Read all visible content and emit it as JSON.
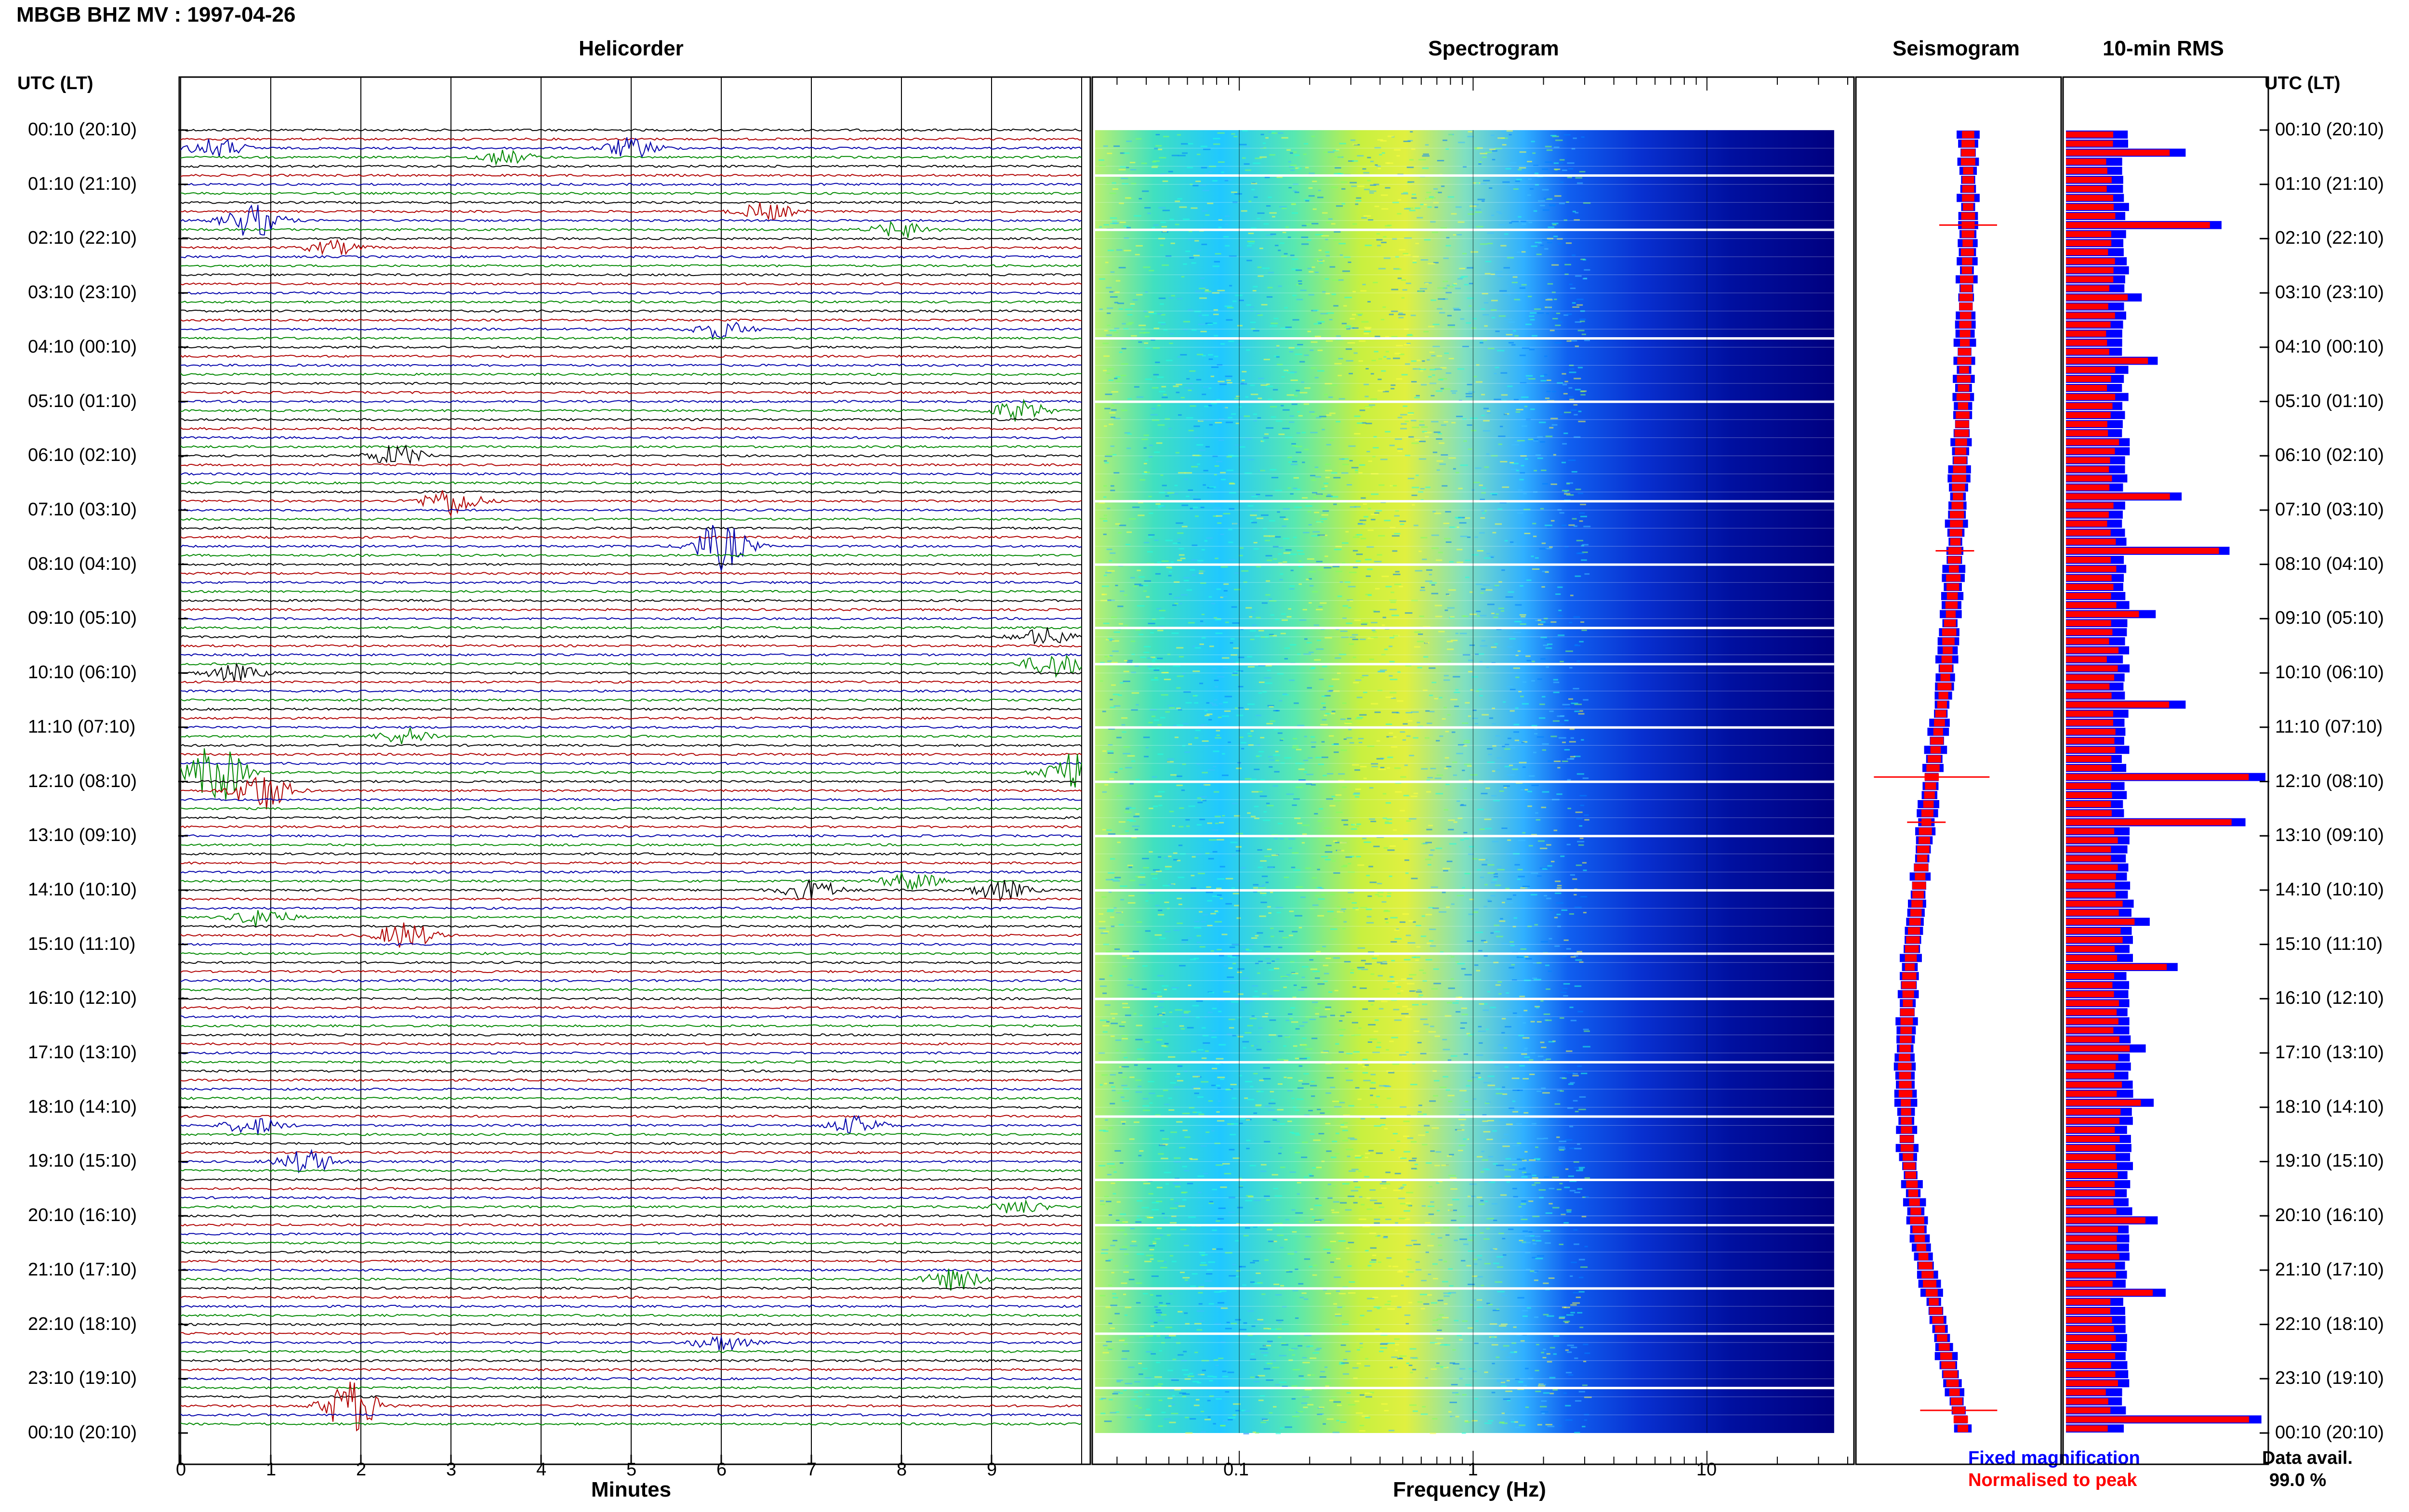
{
  "header": {
    "title": "MBGB BHZ MV : 1997-04-26"
  },
  "panels": {
    "helicorder": "Helicorder",
    "spectrogram": "Spectrogram",
    "seismogram": "Seismogram",
    "rms": "10-min RMS"
  },
  "time_axis": {
    "header": "UTC (LT)",
    "labels": [
      "00:10 (20:10)",
      "01:10 (21:10)",
      "02:10 (22:10)",
      "03:10 (23:10)",
      "04:10 (00:10)",
      "05:10 (01:10)",
      "06:10 (02:10)",
      "07:10 (03:10)",
      "08:10 (04:10)",
      "09:10 (05:10)",
      "10:10 (06:10)",
      "11:10 (07:10)",
      "12:10 (08:10)",
      "13:10 (09:10)",
      "14:10 (10:10)",
      "15:10 (11:10)",
      "16:10 (12:10)",
      "17:10 (13:10)",
      "18:10 (14:10)",
      "19:10 (15:10)",
      "20:10 (16:10)",
      "21:10 (17:10)",
      "22:10 (18:10)",
      "23:10 (19:10)",
      "00:10 (20:10)"
    ]
  },
  "legend": {
    "fixed": "Fixed magnification",
    "normalised": "Normalised to peak",
    "data_avail_label": "Data avail.",
    "data_avail_value": "99.0 %"
  },
  "colors": {
    "trace_cycle": [
      "#000000",
      "#b00000",
      "#0000aa",
      "#008800"
    ],
    "fixed": "#0000ff",
    "normalised": "#ff0000"
  },
  "chart_data": [
    {
      "type": "line",
      "panel": "helicorder",
      "rows": 144,
      "row_duration_min": 10,
      "xlabel": "Minutes",
      "x_ticks": [
        "0",
        "1",
        "2",
        "3",
        "4",
        "5",
        "6",
        "7",
        "8",
        "9"
      ],
      "xlim": [
        0,
        10
      ],
      "events": [
        {
          "row": 2,
          "minute": 0.4,
          "amp": 1.4
        },
        {
          "row": 2,
          "minute": 5.0,
          "amp": 1.5
        },
        {
          "row": 3,
          "minute": 3.6,
          "amp": 1.0
        },
        {
          "row": 10,
          "minute": 0.8,
          "amp": 2.5
        },
        {
          "row": 9,
          "minute": 6.5,
          "amp": 1.3
        },
        {
          "row": 11,
          "minute": 8.0,
          "amp": 1.2
        },
        {
          "row": 13,
          "minute": 1.7,
          "amp": 1.0
        },
        {
          "row": 22,
          "minute": 6.0,
          "amp": 1.3
        },
        {
          "row": 31,
          "minute": 9.3,
          "amp": 1.5
        },
        {
          "row": 36,
          "minute": 2.4,
          "amp": 1.6
        },
        {
          "row": 41,
          "minute": 3.0,
          "amp": 2.2
        },
        {
          "row": 46,
          "minute": 6.0,
          "amp": 3.5
        },
        {
          "row": 56,
          "minute": 9.6,
          "amp": 1.3
        },
        {
          "row": 59,
          "minute": 9.7,
          "amp": 2.0
        },
        {
          "row": 60,
          "minute": 0.6,
          "amp": 1.2
        },
        {
          "row": 67,
          "minute": 2.5,
          "amp": 1.2
        },
        {
          "row": 71,
          "minute": 0.4,
          "amp": 4.5
        },
        {
          "row": 71,
          "minute": 9.9,
          "amp": 3.2
        },
        {
          "row": 73,
          "minute": 0.9,
          "amp": 3.0
        },
        {
          "row": 83,
          "minute": 8.1,
          "amp": 1.4
        },
        {
          "row": 84,
          "minute": 7.0,
          "amp": 1.6
        },
        {
          "row": 84,
          "minute": 9.1,
          "amp": 1.5
        },
        {
          "row": 87,
          "minute": 0.9,
          "amp": 1.4
        },
        {
          "row": 89,
          "minute": 2.5,
          "amp": 2.0
        },
        {
          "row": 110,
          "minute": 0.8,
          "amp": 1.3
        },
        {
          "row": 110,
          "minute": 7.5,
          "amp": 1.3
        },
        {
          "row": 114,
          "minute": 1.4,
          "amp": 1.7
        },
        {
          "row": 119,
          "minute": 9.3,
          "amp": 1.0
        },
        {
          "row": 127,
          "minute": 8.6,
          "amp": 1.6
        },
        {
          "row": 134,
          "minute": 6.0,
          "amp": 1.2
        },
        {
          "row": 141,
          "minute": 1.9,
          "amp": 4.0
        }
      ]
    },
    {
      "type": "heatmap",
      "panel": "spectrogram",
      "xlabel": "Frequency (Hz)",
      "x_scale": "log",
      "xlim": [
        0.025,
        40
      ],
      "x_ticks": [
        "0.1",
        "1",
        "10"
      ],
      "colormap": [
        "#00007f",
        "#0000ff",
        "#0080ff",
        "#00ffff",
        "#80ff80",
        "#ffff00"
      ],
      "gap_rows": [
        5,
        11,
        23,
        30,
        41,
        48,
        55,
        59,
        66,
        72,
        78,
        84,
        91,
        96,
        103,
        109,
        116,
        121,
        128,
        133,
        139
      ]
    },
    {
      "type": "line",
      "panel": "seismogram",
      "description_series": [
        {
          "name": "Fixed magnification",
          "color": "#0000ff"
        },
        {
          "name": "Normalised to peak",
          "color": "#ff0000"
        }
      ],
      "offset_profile": [
        0,
        0,
        -1,
        -2,
        -4,
        -6,
        -9,
        -14,
        -18,
        -22,
        -24,
        -23,
        -18,
        -10,
        -2
      ]
    },
    {
      "type": "bar",
      "panel": "rms",
      "orientation": "horizontal",
      "series": [
        {
          "name": "Fixed magnification",
          "color": "#0000ff"
        },
        {
          "name": "Normalised to peak",
          "color": "#ff0000"
        }
      ],
      "peaks": [
        {
          "row": 2,
          "value": 0.6
        },
        {
          "row": 10,
          "value": 0.78
        },
        {
          "row": 18,
          "value": 0.38
        },
        {
          "row": 25,
          "value": 0.46
        },
        {
          "row": 40,
          "value": 0.58
        },
        {
          "row": 46,
          "value": 0.82
        },
        {
          "row": 53,
          "value": 0.45
        },
        {
          "row": 63,
          "value": 0.6
        },
        {
          "row": 71,
          "value": 1.0
        },
        {
          "row": 76,
          "value": 0.9
        },
        {
          "row": 87,
          "value": 0.42
        },
        {
          "row": 92,
          "value": 0.56
        },
        {
          "row": 101,
          "value": 0.4
        },
        {
          "row": 107,
          "value": 0.44
        },
        {
          "row": 120,
          "value": 0.46
        },
        {
          "row": 128,
          "value": 0.5
        },
        {
          "row": 142,
          "value": 0.98
        }
      ],
      "baseline": 0.3
    }
  ]
}
